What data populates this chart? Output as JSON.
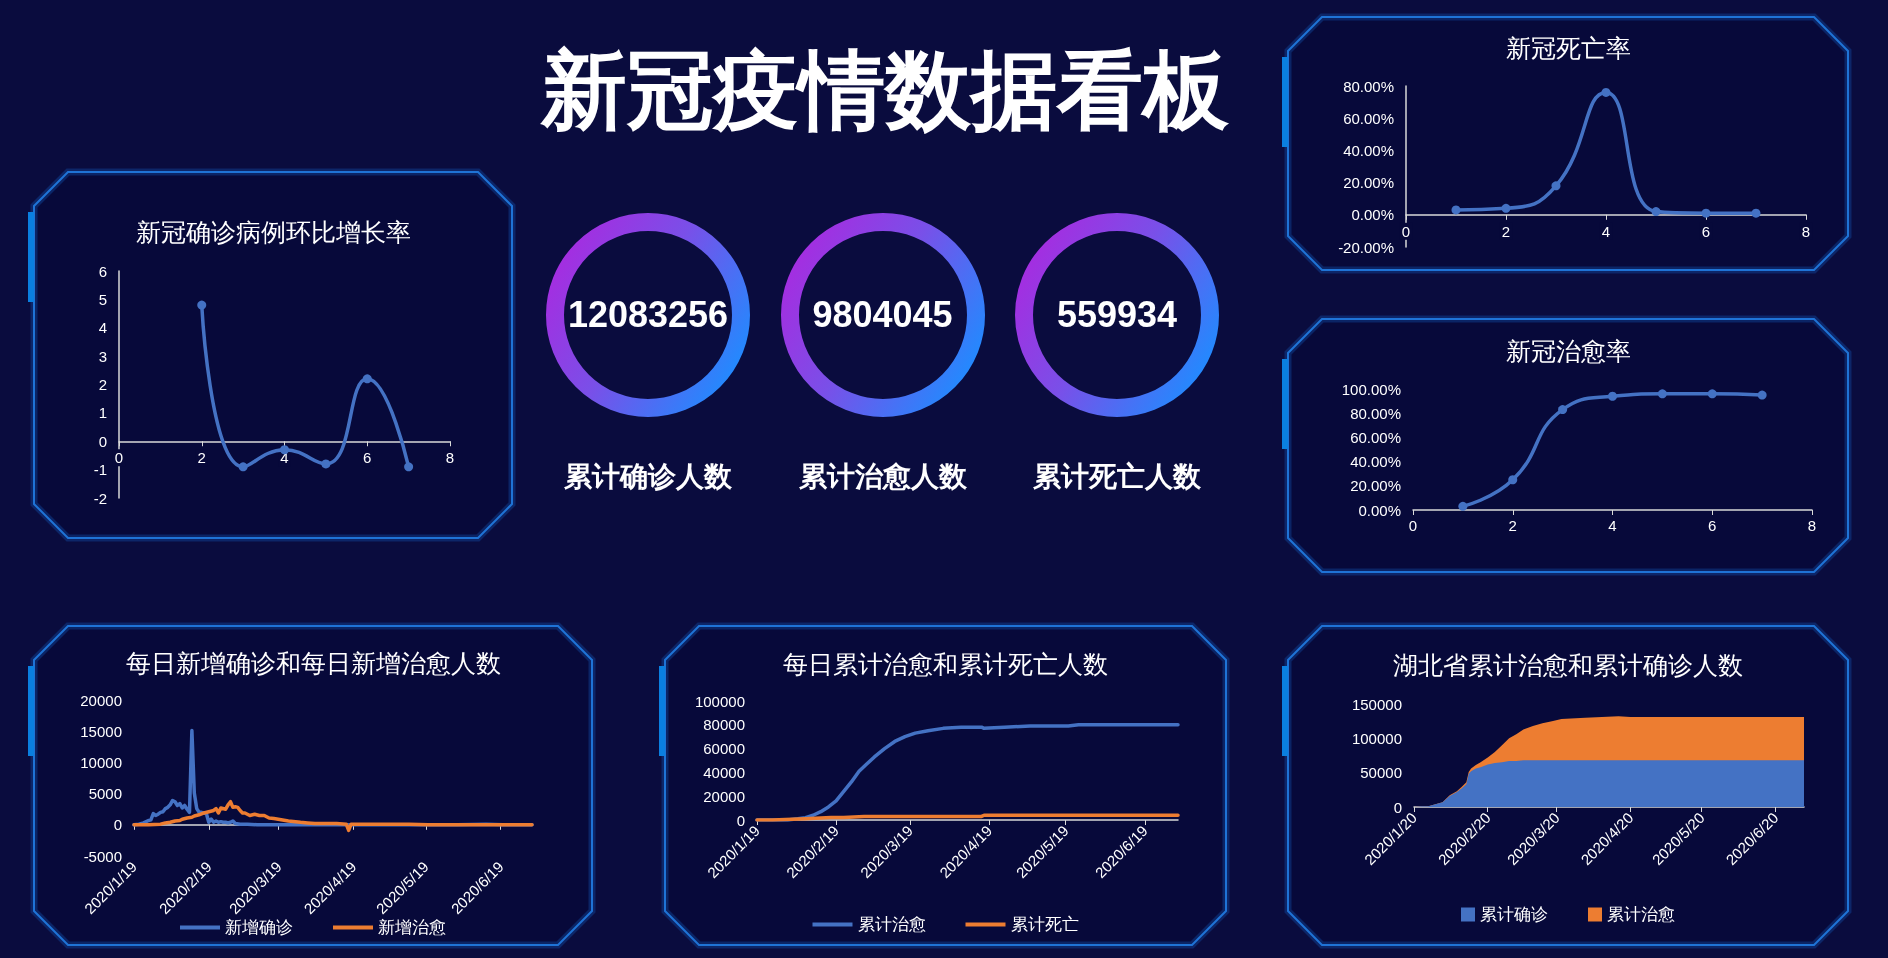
{
  "chart_data": [
    {
      "type": "other",
      "title": "新冠疫情数据看板",
      "annotations": [
        "12083256",
        "累计确诊人数",
        "9804045",
        "累计治愈人数",
        "559934",
        "累计死亡人数"
      ]
    },
    {
      "type": "line",
      "title": "新冠死亡率",
      "x": [
        1,
        2,
        3,
        4,
        5,
        6,
        7
      ],
      "values": [
        3,
        4,
        18,
        76,
        2,
        1,
        1
      ],
      "color": "#4472c4",
      "marker": "circle",
      "xlim": [
        0,
        8
      ],
      "xticks": [
        0,
        2,
        4,
        6,
        8
      ],
      "ylim": [
        -20,
        80
      ],
      "yticks": [
        {
          "value": -20,
          "label": "-20.00%"
        },
        {
          "value": 0,
          "label": "0.00%"
        },
        {
          "value": 20,
          "label": "20.00%"
        },
        {
          "value": 40,
          "label": "40.00%"
        },
        {
          "value": 60,
          "label": "60.00%"
        },
        {
          "value": 80,
          "label": "80.00%"
        }
      ]
    },
    {
      "type": "line",
      "title": "新冠确诊病例环比增长率",
      "x": [
        2,
        3,
        4,
        5,
        6,
        7
      ],
      "values": [
        4.8,
        -0.9,
        -0.3,
        -0.8,
        2.2,
        -0.9
      ],
      "color": "#4472c4",
      "marker": "circle",
      "xlim": [
        0,
        8
      ],
      "xticks": [
        0,
        2,
        4,
        6,
        8
      ],
      "ylim": [
        -2,
        6
      ],
      "yticks": [
        -2,
        -1,
        0,
        1,
        2,
        3,
        4,
        5,
        6
      ]
    },
    {
      "type": "line",
      "title": "新冠治愈率",
      "x": [
        1,
        2,
        3,
        4,
        5,
        6,
        7
      ],
      "values": [
        3,
        25,
        83,
        94,
        96,
        96,
        95
      ],
      "color": "#4472c4",
      "marker": "circle",
      "xlim": [
        0,
        8
      ],
      "xticks": [
        0,
        2,
        4,
        6,
        8
      ],
      "ylim": [
        0,
        100
      ],
      "yticks": [
        {
          "value": 0,
          "label": "0.00%"
        },
        {
          "value": 20,
          "label": "20.00%"
        },
        {
          "value": 40,
          "label": "40.00%"
        },
        {
          "value": 60,
          "label": "60.00%"
        },
        {
          "value": 80,
          "label": "80.00%"
        },
        {
          "value": 100,
          "label": "100.00%"
        }
      ]
    },
    {
      "type": "line",
      "title": "每日新增确诊和每日新增治愈人数",
      "legend": "bottom",
      "xlim": [
        "2020-01-19",
        "2020-07-02"
      ],
      "xticks": [
        {
          "value": "2020-01-19",
          "label": "2020/1/19"
        },
        {
          "value": "2020-02-19",
          "label": "2020/2/19"
        },
        {
          "value": "2020-03-19",
          "label": "2020/3/19"
        },
        {
          "value": "2020-04-19",
          "label": "2020/4/19"
        },
        {
          "value": "2020-05-19",
          "label": "2020/5/19"
        },
        {
          "value": "2020-06-19",
          "label": "2020/6/19"
        }
      ],
      "ylim": [
        -5000,
        20000
      ],
      "yticks": [
        -5000,
        0,
        5000,
        10000,
        15000,
        20000
      ],
      "series": [
        {
          "name": "新增确诊",
          "color": "#4472c4",
          "x": [
            "2020-01-19",
            "2020-01-21",
            "2020-01-23",
            "2020-01-25",
            "2020-01-26",
            "2020-01-27",
            "2020-01-28",
            "2020-01-29",
            "2020-01-30",
            "2020-01-31",
            "2020-02-01",
            "2020-02-02",
            "2020-02-03",
            "2020-02-04",
            "2020-02-05",
            "2020-02-06",
            "2020-02-07",
            "2020-02-08",
            "2020-02-09",
            "2020-02-10",
            "2020-02-11",
            "2020-02-12",
            "2020-02-13",
            "2020-02-14",
            "2020-02-15",
            "2020-02-16",
            "2020-02-17",
            "2020-02-18",
            "2020-02-19",
            "2020-02-20",
            "2020-02-21",
            "2020-02-22",
            "2020-02-23",
            "2020-02-24",
            "2020-02-25",
            "2020-02-26",
            "2020-02-27",
            "2020-02-28",
            "2020-02-29",
            "2020-03-01",
            "2020-03-03",
            "2020-03-06",
            "2020-03-10",
            "2020-03-20",
            "2020-03-31",
            "2020-04-10",
            "2020-04-20",
            "2020-05-10",
            "2020-06-01",
            "2020-06-13",
            "2020-06-20",
            "2020-07-02"
          ],
          "values": [
            0,
            100,
            300,
            700,
            800,
            1800,
            1500,
            1700,
            2000,
            2100,
            2600,
            2800,
            3200,
            3900,
            3700,
            3100,
            3400,
            2700,
            3100,
            2500,
            2000,
            15100,
            5100,
            2600,
            2000,
            2000,
            1900,
            1800,
            400,
            900,
            400,
            600,
            400,
            500,
            400,
            400,
            300,
            400,
            600,
            200,
            100,
            100,
            0,
            0,
            0,
            0,
            0,
            0,
            0,
            100,
            0,
            0
          ]
        },
        {
          "name": "新增治愈",
          "color": "#ed7d31",
          "x": [
            "2020-01-19",
            "2020-01-25",
            "2020-01-30",
            "2020-02-01",
            "2020-02-03",
            "2020-02-05",
            "2020-02-07",
            "2020-02-08",
            "2020-02-10",
            "2020-02-12",
            "2020-02-13",
            "2020-02-15",
            "2020-02-17",
            "2020-02-19",
            "2020-02-21",
            "2020-02-22",
            "2020-02-23",
            "2020-02-24",
            "2020-02-26",
            "2020-02-27",
            "2020-02-28",
            "2020-02-29",
            "2020-03-01",
            "2020-03-02",
            "2020-03-03",
            "2020-03-04",
            "2020-03-05",
            "2020-03-07",
            "2020-03-09",
            "2020-03-11",
            "2020-03-13",
            "2020-03-15",
            "2020-03-17",
            "2020-03-20",
            "2020-03-23",
            "2020-03-26",
            "2020-03-28",
            "2020-03-31",
            "2020-04-03",
            "2020-04-07",
            "2020-04-12",
            "2020-04-16",
            "2020-04-17",
            "2020-04-18",
            "2020-04-25",
            "2020-05-05",
            "2020-05-12",
            "2020-05-20",
            "2020-06-01",
            "2020-06-19",
            "2020-07-02"
          ],
          "values": [
            0,
            0,
            100,
            300,
            400,
            600,
            700,
            900,
            1100,
            1200,
            1400,
            1600,
            1900,
            2100,
            2300,
            2600,
            1900,
            2700,
            2500,
            3200,
            3700,
            2800,
            2900,
            2800,
            2300,
            1900,
            1900,
            1500,
            1700,
            1500,
            1500,
            1100,
            1000,
            800,
            600,
            500,
            400,
            300,
            200,
            200,
            200,
            100,
            -900,
            100,
            100,
            100,
            100,
            0,
            0,
            0,
            0
          ]
        }
      ]
    },
    {
      "type": "line",
      "title": "每日累计治愈和累计死亡人数",
      "legend": "bottom",
      "xlim": [
        "2020-01-19",
        "2020-07-02"
      ],
      "xticks": [
        {
          "value": "2020-01-19",
          "label": "2020/1/19"
        },
        {
          "value": "2020-02-19",
          "label": "2020/2/19"
        },
        {
          "value": "2020-03-19",
          "label": "2020/3/19"
        },
        {
          "value": "2020-04-19",
          "label": "2020/4/19"
        },
        {
          "value": "2020-05-19",
          "label": "2020/5/19"
        },
        {
          "value": "2020-06-19",
          "label": "2020/6/19"
        }
      ],
      "ylim": [
        0,
        100000
      ],
      "yticks": [
        0,
        20000,
        40000,
        60000,
        80000,
        100000
      ],
      "series": [
        {
          "name": "累计治愈",
          "color": "#4472c4",
          "x": [
            "2020-01-19",
            "2020-01-31",
            "2020-02-04",
            "2020-02-07",
            "2020-02-10",
            "2020-02-13",
            "2020-02-16",
            "2020-02-19",
            "2020-02-22",
            "2020-02-25",
            "2020-02-28",
            "2020-03-02",
            "2020-03-05",
            "2020-03-09",
            "2020-03-13",
            "2020-03-17",
            "2020-03-21",
            "2020-03-26",
            "2020-04-01",
            "2020-04-08",
            "2020-04-16",
            "2020-04-17",
            "2020-04-25",
            "2020-05-05",
            "2020-05-20",
            "2020-05-24",
            "2020-06-19",
            "2020-07-02"
          ],
          "values": [
            0,
            0,
            1000,
            2000,
            4000,
            7000,
            11000,
            16000,
            24000,
            32000,
            41000,
            47000,
            53000,
            60000,
            66000,
            70000,
            73000,
            75000,
            77000,
            78000,
            78000,
            77000,
            78000,
            79000,
            79000,
            80000,
            80000,
            80000
          ]
        },
        {
          "name": "累计死亡",
          "color": "#ed7d31",
          "x": [
            "2020-01-19",
            "2020-01-25",
            "2020-02-07",
            "2020-02-17",
            "2020-02-22",
            "2020-03-01",
            "2020-04-16",
            "2020-04-17",
            "2020-07-02"
          ],
          "values": [
            0,
            0,
            1000,
            2000,
            2000,
            3000,
            3000,
            4000,
            4000
          ]
        }
      ]
    },
    {
      "type": "area",
      "stacked": true,
      "title": "湖北省累计治愈和累计确诊人数",
      "legend": "bottom",
      "xlim": [
        "2020-01-20",
        "2020-07-02"
      ],
      "xticks": [
        {
          "value": "2020-01-20",
          "label": "2020/1/20"
        },
        {
          "value": "2020-02-20",
          "label": "2020/2/20"
        },
        {
          "value": "2020-03-20",
          "label": "2020/3/20"
        },
        {
          "value": "2020-04-20",
          "label": "2020/4/20"
        },
        {
          "value": "2020-05-20",
          "label": "2020/5/20"
        },
        {
          "value": "2020-06-20",
          "label": "2020/6/20"
        }
      ],
      "ylim": [
        0,
        150000
      ],
      "yticks": [
        0,
        50000,
        100000,
        150000
      ],
      "x": [
        "2020-01-20",
        "2020-01-23",
        "2020-01-26",
        "2020-01-29",
        "2020-02-01",
        "2020-02-04",
        "2020-02-07",
        "2020-02-09",
        "2020-02-11",
        "2020-02-12",
        "2020-02-13",
        "2020-02-15",
        "2020-02-17",
        "2020-02-20",
        "2020-02-23",
        "2020-02-26",
        "2020-02-29",
        "2020-03-03",
        "2020-03-06",
        "2020-03-10",
        "2020-03-14",
        "2020-03-18",
        "2020-03-22",
        "2020-03-26",
        "2020-04-01",
        "2020-04-08",
        "2020-04-15",
        "2020-04-20",
        "2020-04-30",
        "2020-05-15",
        "2020-06-01",
        "2020-06-15",
        "2020-07-02"
      ],
      "series": [
        {
          "name": "累计确诊",
          "color": "#4472c4",
          "values": [
            0,
            1000,
            1000,
            4000,
            7000,
            16000,
            22000,
            27000,
            33000,
            48000,
            52000,
            56000,
            58000,
            62000,
            64000,
            65000,
            67000,
            67000,
            68000,
            68000,
            68000,
            68000,
            68000,
            68000,
            68000,
            68000,
            68000,
            68000,
            68000,
            68000,
            68000,
            68000,
            68000
          ]
        },
        {
          "name": "累计治愈",
          "color": "#ed7d31",
          "values": [
            0,
            0,
            0,
            0,
            0,
            1000,
            1000,
            2000,
            3000,
            3000,
            4000,
            5000,
            7000,
            10000,
            16000,
            25000,
            33000,
            39000,
            45000,
            50000,
            54000,
            57000,
            60000,
            61000,
            62000,
            63000,
            64000,
            63000,
            63000,
            63000,
            63000,
            63000,
            63000
          ]
        }
      ]
    }
  ]
}
